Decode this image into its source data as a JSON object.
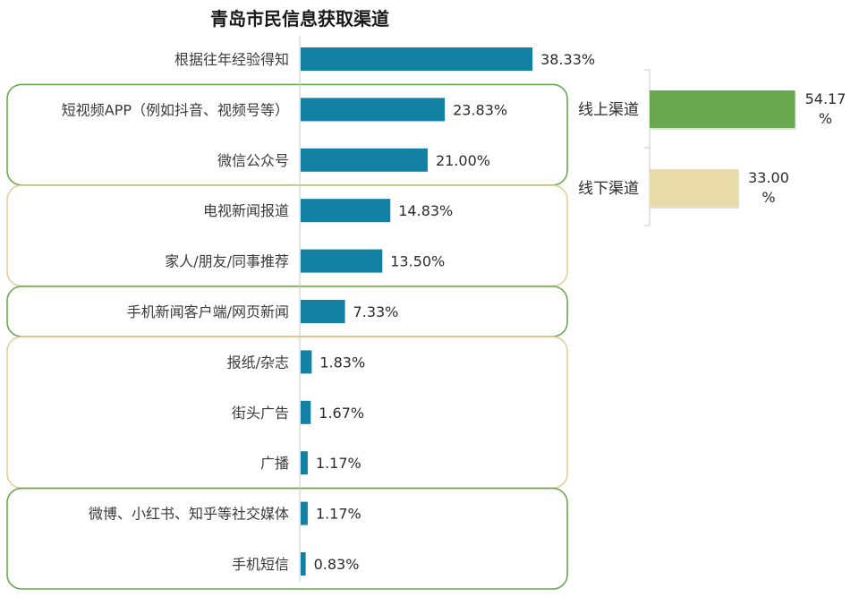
{
  "chart_data": [
    {
      "type": "bar",
      "orientation": "horizontal",
      "title": "青岛市民信息获取渠道",
      "categories": [
        "根据往年经验得知",
        "短视频APP（例如抖音、视频号等）",
        "微信公众号",
        "电视新闻报道",
        "家人/朋友/同事推荐",
        "手机新闻客户端/网页新闻",
        "报纸/杂志",
        "街头广告",
        "广播",
        "微博、小红书、知乎等社交媒体",
        "手机短信"
      ],
      "values": [
        38.33,
        23.83,
        21.0,
        14.83,
        13.5,
        7.33,
        1.83,
        1.67,
        1.17,
        1.17,
        0.83
      ],
      "value_labels": [
        "38.33%",
        "23.83%",
        "21.00%",
        "14.83%",
        "13.50%",
        "7.33%",
        "1.83%",
        "1.67%",
        "1.17%",
        "1.17%",
        "0.83%"
      ],
      "bar_color": "#1381a4",
      "groups": [
        {
          "members": [
            1,
            2
          ],
          "style": "green"
        },
        {
          "members": [
            3,
            4
          ],
          "style": "tan"
        },
        {
          "members": [
            5
          ],
          "style": "green"
        },
        {
          "members": [
            6,
            7,
            8
          ],
          "style": "tan"
        },
        {
          "members": [
            9,
            10
          ],
          "style": "green"
        }
      ]
    },
    {
      "type": "bar",
      "orientation": "horizontal",
      "categories": [
        "线上渠道",
        "线下渠道"
      ],
      "values": [
        54.17,
        33.0
      ],
      "value_labels": [
        [
          "54.17",
          "%"
        ],
        [
          "33.00",
          "%"
        ]
      ],
      "colors": [
        "#6aa84f",
        "#eadcaa"
      ]
    }
  ],
  "colors": {
    "bar": "#1381a4",
    "online": "#6aa84f",
    "offline": "#eadcaa",
    "group_green": "#6aa84f",
    "group_tan": "#e4cf9a"
  }
}
